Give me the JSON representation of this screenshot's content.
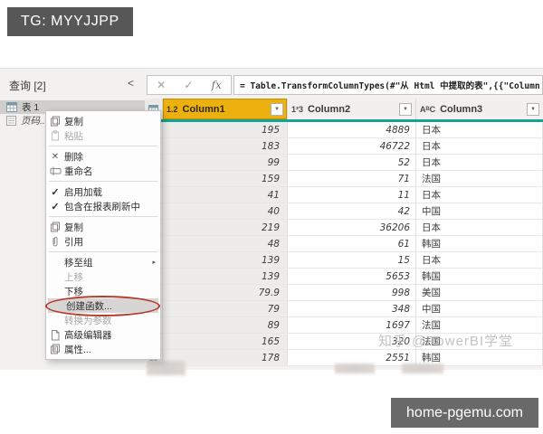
{
  "overlays": {
    "tg_banner": "TG: MYYJJPP",
    "site_banner": "home-pgemu.com",
    "watermark": "知乎 @PowerBI学堂"
  },
  "sidebar": {
    "header": "查询 [2]",
    "collapse_glyph": "<",
    "items": [
      {
        "label": "表 1",
        "selected": true
      },
      {
        "label": "页码...",
        "italic": true
      }
    ]
  },
  "formula_bar": {
    "cancel_glyph": "✕",
    "check_glyph": "✓",
    "fx_label": "fx",
    "formula": "= Table.TransformColumnTypes(#\"从 Html 中提取的表\",{{\"Column"
  },
  "table": {
    "columns": [
      {
        "type_icon": "1.2",
        "label": "Column1",
        "selected": true
      },
      {
        "type_icon": "1²3",
        "label": "Column2",
        "selected": false
      },
      {
        "type_icon": "AᴮC",
        "label": "Column3",
        "selected": false
      }
    ],
    "rows": [
      [
        "195",
        "4889",
        "日本"
      ],
      [
        "183",
        "46722",
        "日本"
      ],
      [
        "99",
        "52",
        "日本"
      ],
      [
        "159",
        "71",
        "法国"
      ],
      [
        "41",
        "11",
        "日本"
      ],
      [
        "40",
        "42",
        "中国"
      ],
      [
        "219",
        "36206",
        "日本"
      ],
      [
        "48",
        "61",
        "韩国"
      ],
      [
        "139",
        "15",
        "日本"
      ],
      [
        "139",
        "5653",
        "韩国"
      ],
      [
        "79.9",
        "998",
        "美国"
      ],
      [
        "79",
        "348",
        "中国"
      ],
      [
        "89",
        "1697",
        "法国"
      ],
      [
        "165",
        "320",
        "法国"
      ],
      [
        "178",
        "2551",
        "韩国"
      ]
    ]
  },
  "context_menu": {
    "items": [
      {
        "label": "复制",
        "icon": "copy-icon"
      },
      {
        "label": "粘贴",
        "icon": "paste-icon",
        "disabled": true
      },
      {
        "sep": true
      },
      {
        "label": "删除",
        "icon": "delete-icon"
      },
      {
        "label": "重命名",
        "icon": "rename-icon"
      },
      {
        "sep": true
      },
      {
        "label": "启用加载",
        "icon": "check-icon"
      },
      {
        "label": "包含在报表刷新中",
        "icon": "check-icon"
      },
      {
        "sep": true
      },
      {
        "label": "复制",
        "icon": "duplicate-icon"
      },
      {
        "label": "引用",
        "icon": "reference-icon"
      },
      {
        "sep": true
      },
      {
        "label": "移至组",
        "submenu": true
      },
      {
        "label": "上移",
        "disabled": true
      },
      {
        "label": "下移"
      },
      {
        "label": "创建函数...",
        "highlighted": true,
        "annotated": true
      },
      {
        "label": "转换为参数",
        "disabled": true
      },
      {
        "label": "高级编辑器",
        "icon": "advanced-editor-icon"
      },
      {
        "label": "属性...",
        "icon": "properties-icon"
      }
    ]
  },
  "colors": {
    "selected_header": "#ecb10f",
    "header_underline": "#14a396",
    "annotation_red": "#b43a2c",
    "banner_gray": "#696969"
  }
}
